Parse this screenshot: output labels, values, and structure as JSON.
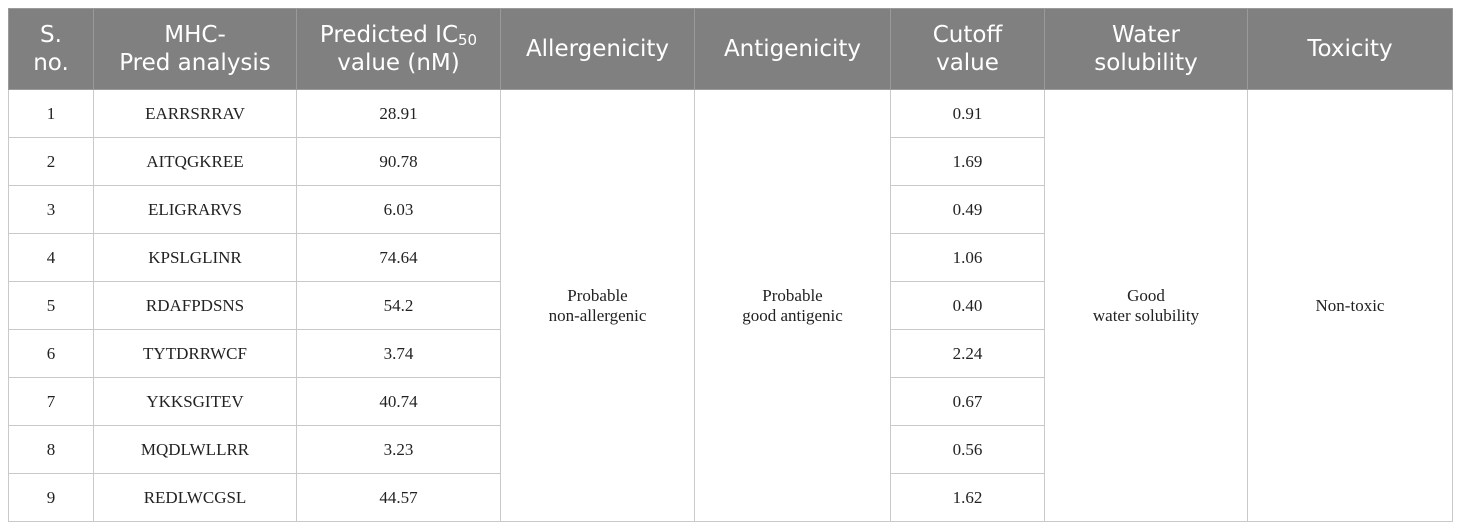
{
  "table": {
    "headers": {
      "sno": [
        "S.",
        "no."
      ],
      "mhc": [
        "MHC-",
        "Pred analysis"
      ],
      "ic50_prefix": "Predicted IC",
      "ic50_sub": "50",
      "ic50_line2": "value (nM)",
      "allergenicity": "Allergenicity",
      "antigenicity": "Antigenicity",
      "cutoff": [
        "Cutoff",
        "value"
      ],
      "water": [
        "Water",
        "solubility"
      ],
      "toxicity": "Toxicity"
    },
    "rows": [
      {
        "sno": "1",
        "peptide": "EARRSRRAV",
        "ic50": "28.91",
        "cutoff": "0.91"
      },
      {
        "sno": "2",
        "peptide": "AITQGKREE",
        "ic50": "90.78",
        "cutoff": "1.69"
      },
      {
        "sno": "3",
        "peptide": "ELIGRARVS",
        "ic50": "6.03",
        "cutoff": "0.49"
      },
      {
        "sno": "4",
        "peptide": "KPSLGLINR",
        "ic50": "74.64",
        "cutoff": "1.06"
      },
      {
        "sno": "5",
        "peptide": "RDAFPDSNS",
        "ic50": "54.2",
        "cutoff": "0.40"
      },
      {
        "sno": "6",
        "peptide": "TYTDRRWCF",
        "ic50": "3.74",
        "cutoff": "2.24"
      },
      {
        "sno": "7",
        "peptide": "YKKSGITEV",
        "ic50": "40.74",
        "cutoff": "0.67"
      },
      {
        "sno": "8",
        "peptide": "MQDLWLLRR",
        "ic50": "3.23",
        "cutoff": "0.56"
      },
      {
        "sno": "9",
        "peptide": "REDLWCGSL",
        "ic50": "44.57",
        "cutoff": "1.62"
      }
    ],
    "merged": {
      "allergenicity": [
        "Probable",
        "non-allergenic"
      ],
      "antigenicity": [
        "Probable",
        "good antigenic"
      ],
      "water": [
        "Good",
        "water solubility"
      ],
      "toxicity": "Non-toxic"
    }
  }
}
